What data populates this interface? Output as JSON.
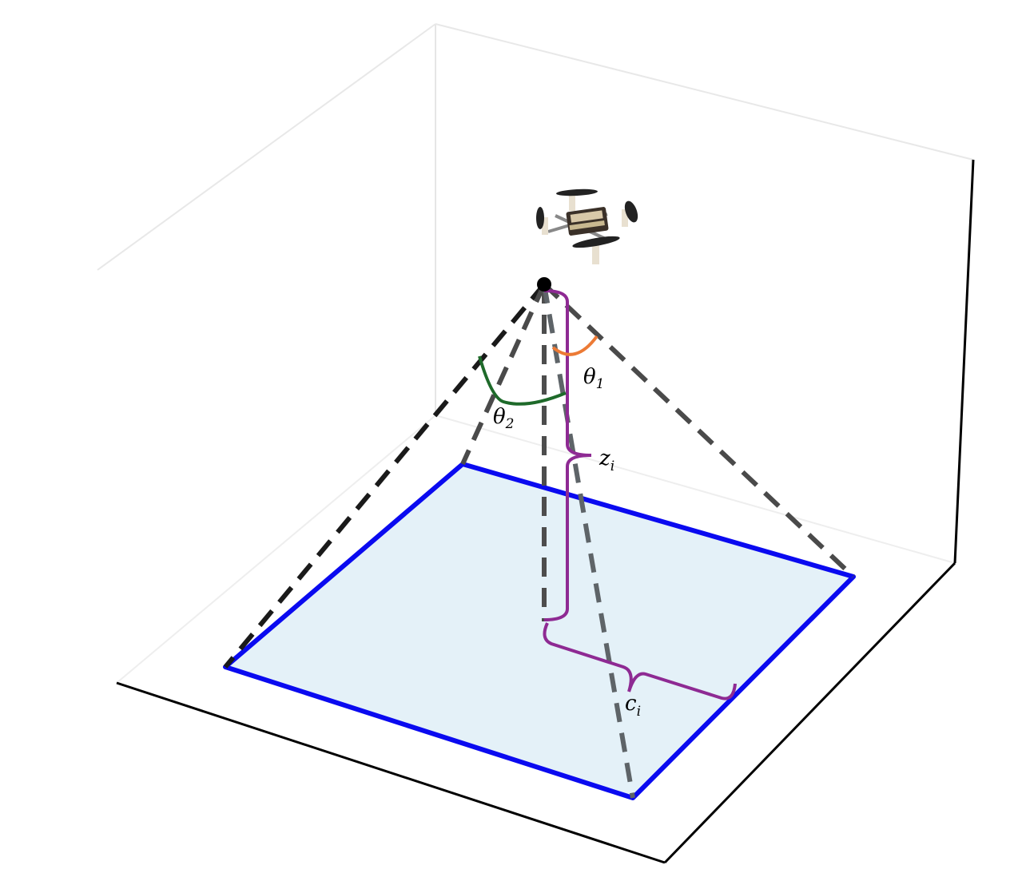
{
  "labels": {
    "theta1": {
      "main": "θ",
      "sub": "1"
    },
    "theta2": {
      "main": "θ",
      "sub": "2"
    },
    "z": {
      "main": "z",
      "sub": "i"
    },
    "c": {
      "main": "c",
      "sub": "i"
    }
  },
  "colors": {
    "footprint_edge": "#0a0af0",
    "footprint_fill": "#e4f1f8",
    "frustum_dark": "#1a1a1a",
    "frustum_mid": "#4a4a4a",
    "frustum_light": "#5e6468",
    "brace": "#8e2a93",
    "theta1_arc": "#ec7a35",
    "theta2_arc": "#1e6a2a",
    "axes": "#000000",
    "grid_faint": "#e6e6e6"
  },
  "icons": {
    "drone": "quadcopter-drone-icon",
    "camera_point": "camera-origin-dot"
  }
}
